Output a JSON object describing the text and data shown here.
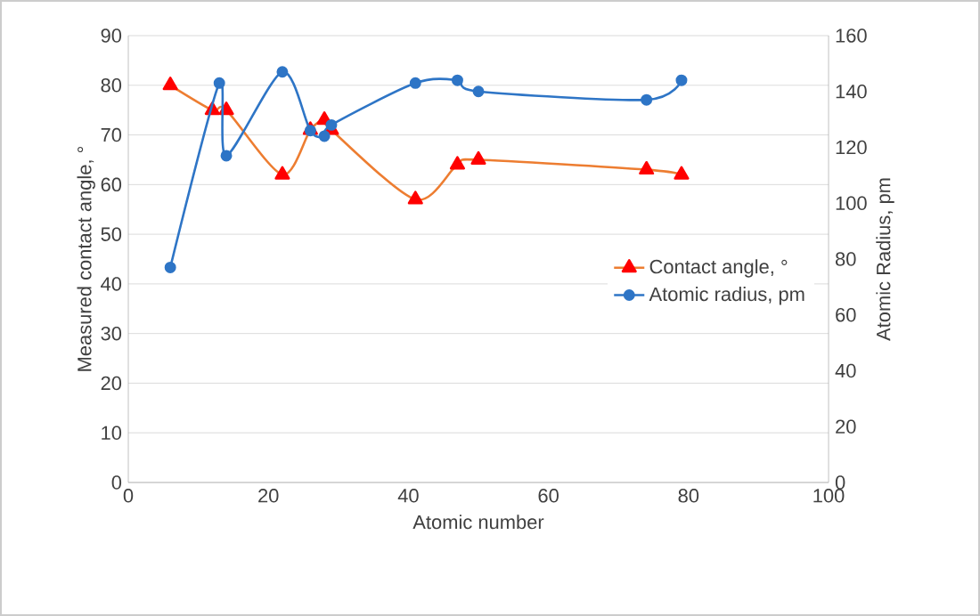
{
  "chart_data": {
    "type": "line",
    "xlabel": "Atomic number",
    "ylabel": "Measured contact angle, °",
    "y2label": "Atomic Radius, pm",
    "xlim": [
      0,
      100
    ],
    "xticks": [
      0,
      20,
      40,
      60,
      80,
      100
    ],
    "ylim": [
      0,
      90
    ],
    "yticks": [
      0,
      10,
      20,
      30,
      40,
      50,
      60,
      70,
      80,
      90
    ],
    "y2lim": [
      0,
      160
    ],
    "y2ticks": [
      0,
      20,
      40,
      60,
      80,
      100,
      120,
      140,
      160
    ],
    "grid": "y",
    "legend": "right",
    "series": [
      {
        "name": "Contact angle, °",
        "color": "#ed7d31",
        "marker": "triangle",
        "x": [
          6,
          12,
          14,
          22,
          26,
          28,
          29,
          41,
          47,
          50,
          74,
          79
        ],
        "values": [
          80,
          75,
          75,
          62,
          71,
          73,
          71,
          57,
          64,
          65,
          63,
          62
        ]
      },
      {
        "name": "Atomic radius, pm",
        "color": "#2e75c6",
        "marker": "circle",
        "axis": "y2",
        "x": [
          6,
          13,
          14,
          22,
          26,
          28,
          29,
          41,
          47,
          50,
          74,
          79
        ],
        "values": [
          77,
          143,
          117,
          147,
          126,
          124,
          128,
          143,
          144,
          140,
          137,
          144
        ]
      }
    ]
  }
}
